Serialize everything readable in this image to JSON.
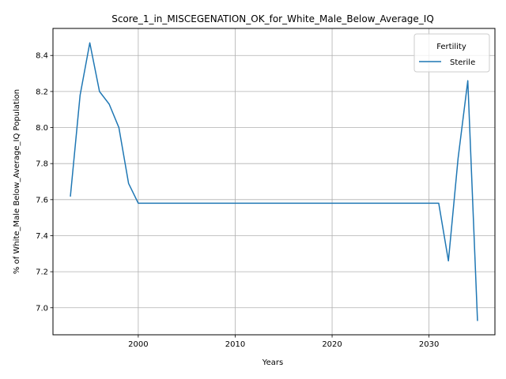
{
  "chart_data": {
    "type": "line",
    "title": "Score_1_in_MISCEGENATION_OK_for_White_Male_Below_Average_IQ",
    "xlabel": "Years",
    "ylabel": "% of White_Male Below_Average_IQ Population",
    "xlim": [
      1991.2,
      2036.8
    ],
    "ylim": [
      6.85,
      8.55
    ],
    "xticks": [
      2000,
      2010,
      2020,
      2030
    ],
    "yticks": [
      7.0,
      7.2,
      7.4,
      7.6,
      7.8,
      8.0,
      8.2,
      8.4
    ],
    "ytick_labels": [
      "7.0",
      "7.2",
      "7.4",
      "7.6",
      "7.8",
      "8.0",
      "8.2",
      "8.4"
    ],
    "grid": true,
    "legend": {
      "title": "Fertility",
      "position": "top-right"
    },
    "series": [
      {
        "name": "Sterile",
        "color": "#1f77b4",
        "x": [
          1993,
          1994,
          1995,
          1996,
          1997,
          1998,
          1999,
          2000,
          2001,
          2002,
          2003,
          2004,
          2005,
          2006,
          2007,
          2008,
          2009,
          2010,
          2011,
          2012,
          2013,
          2014,
          2015,
          2016,
          2017,
          2018,
          2019,
          2020,
          2021,
          2022,
          2023,
          2024,
          2025,
          2026,
          2027,
          2028,
          2029,
          2030,
          2031,
          2032,
          2033,
          2034,
          2035
        ],
        "y": [
          7.62,
          8.18,
          8.47,
          8.2,
          8.13,
          8.0,
          7.69,
          7.58,
          7.58,
          7.58,
          7.58,
          7.58,
          7.58,
          7.58,
          7.58,
          7.58,
          7.58,
          7.58,
          7.58,
          7.58,
          7.58,
          7.58,
          7.58,
          7.58,
          7.58,
          7.58,
          7.58,
          7.58,
          7.58,
          7.58,
          7.58,
          7.58,
          7.58,
          7.58,
          7.58,
          7.58,
          7.58,
          7.58,
          7.58,
          7.26,
          7.83,
          8.26,
          6.93
        ]
      }
    ]
  }
}
